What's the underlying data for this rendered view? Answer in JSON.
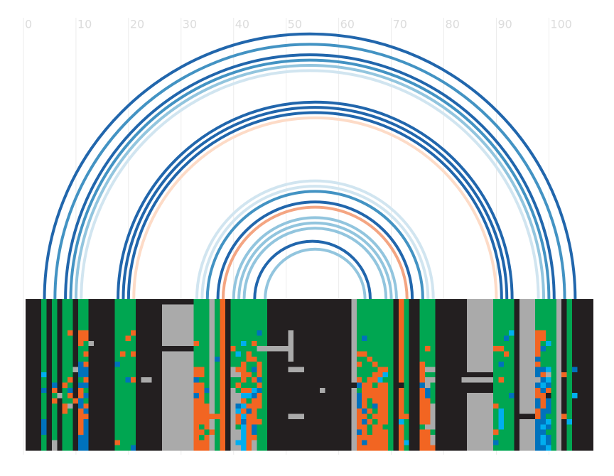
{
  "chart_data": {
    "type": "arc",
    "xlim": [
      -0.4,
      108.6
    ],
    "xticks": [
      0,
      10,
      20,
      30,
      40,
      50,
      60,
      70,
      80,
      90,
      100
    ],
    "grid": true,
    "arcs": [
      {
        "start": 4,
        "end": 105,
        "color": "#2166ac"
      },
      {
        "start": 6,
        "end": 103,
        "color": "#4393c3"
      },
      {
        "start": 8,
        "end": 101,
        "color": "#2166ac"
      },
      {
        "start": 9,
        "end": 100,
        "color": "#4393c3"
      },
      {
        "start": 10,
        "end": 99,
        "color": "#92c5de"
      },
      {
        "start": 11,
        "end": 98,
        "color": "#d1e5f0"
      },
      {
        "start": 18,
        "end": 93,
        "color": "#2166ac"
      },
      {
        "start": 19,
        "end": 92,
        "color": "#2166ac"
      },
      {
        "start": 20,
        "end": 91,
        "color": "#2166ac"
      },
      {
        "start": 21,
        "end": 90,
        "color": "#fddbc7"
      },
      {
        "start": 33,
        "end": 78,
        "color": "#d1e5f0"
      },
      {
        "start": 34,
        "end": 77,
        "color": "#d1e5f0"
      },
      {
        "start": 35,
        "end": 76,
        "color": "#4393c3"
      },
      {
        "start": 37,
        "end": 74,
        "color": "#2166ac"
      },
      {
        "start": 38,
        "end": 73,
        "color": "#f4a582"
      },
      {
        "start": 40,
        "end": 71,
        "color": "#92c5de"
      },
      {
        "start": 41,
        "end": 70,
        "color": "#92c5de"
      },
      {
        "start": 42,
        "end": 69,
        "color": "#92c5de"
      },
      {
        "start": 44,
        "end": 66,
        "color": "#2166ac"
      },
      {
        "start": 46,
        "end": 65,
        "color": "#92c5de"
      }
    ],
    "heatmap": {
      "palette": {
        "K": "#231f20",
        "G": "#00a651",
        "O": "#f26522",
        "S": "#aaaaaa",
        "B": "#0072bc",
        "C": "#00aeef"
      },
      "rows": [
        "KKKGKGKGGKGG KKKKK GGGG KKKKK KKKKKK GGGSGOK GGGGGGG KKKKKKKKKKKKKKKK SGGGGGGG KOGKKGGG KKKKKK SSSSS GGGG KSSS GGGG SKGKKKK",
        "KKKGKGKGGKGG KKKKK GGGG KKKKK SSSSSS GGGSGOK GGGGGGG KKKKKKKKKKKKKKKK SGGGGGGG KOGKKGGG KKKKKK SSSSS GGGG KSSS GGGG SKGKKKK",
        "KKKGKGKGGKGG KKKKK GGGG KKKKK SSSSSS GGGSGOK GGGGGGG KKKKKKKKKKKKKKKK SGGGGGGG KOGKKGGG KKKKKK SSSSS GGGG KSSS GGGG SKGKKKK",
        "KKKGKGKGGKGG KKKKK GGGG KKKKK SSSSSS GGGSGOK GGGGGGG KKKKKKKKKKKKKKKK SGGGGGGG KOGKKGGG KKKKKK SSSSS GGGG KSSS GGGG SKGKKKK",
        "KKKGKGKGGKGG KKKKK GGGG KKKKK SSSSSS GGGSGOK GGGGGGG KKKKKKKKKKKKKKKK SGGGGGGG KOGKKGGG KKKKKK SSSSS GGGG KSSS GGGG SKGKKKK",
        "KKKGKGKGGKGG KKKKK GGGG KKKKK SSSSSS GGGSGOK GGGGGGG KKKKKKKKKKKKKKKK SGGGGGGG KOGKKGGG KKKKKK SSSSS GGGG KSSS GGGG SKGKKKK",
        "KKKGKGKGOKOO KKKKK GGGO KKKKK SSSSSS GGGSGOK GGGGGBG KKKKSKKKKKKKKKKK SGGGGGGG KOGKKGGG KKKKKK SSSSS GGGC KSSS OOGG SKGKKKK",
        "KKKGKGKGGKOO KKKKK GGOG KKKKK SSSSSS GGGSGOK GGGGGGG KKKKSKKKKKKKKKKK SGBGGGGG KOGKKGGG KKKKKK SSSSS GGBG KSSS OOGG SKGKKKK",
        "KKKGKGKGGKOG SKKKK GGGG KKKKK SSSSSS OGGSGOK GGCGOGG KKKKSKKKKKKKKKKK SGGGGGGG KOGKKGGG KKKKKK SSSSS GGGG KSSS OGCG SKGKKKK",
        "KKKGKGKGGKGG KKKKK GGGG KKKKK KKKKKK GGGSGOK OGGGGSS SSSSSKKKKKKKKKKK SGGGGGGG KOGKKGOG KKKKKK SSSSS OOGG KSSS OBGG SKGKKKK",
        "KKKGKGKGGKGO KKKKK GOGO KKKKK SSSSSS GGGSGOK GCGOGGG KKKKSKKKKKKKKKKK SOOGGGGG KOGKKGGG KKKKKK SSSSS GGOG KSSS OGGG SKGKKKK",
        "KKKGKGKGGKGG KKKKK GGGG KKKKK SSSSSS GGGSBOK GGGOOGG KKKKSKKKKKKKKKKK SGGOGGGG KOGKKGGG KKKKKK SSSSS GGGG KSSS BGGG SKGKKKK",
        "KKKGKGKGGKBO KKKKK BGGG KKKKK SSSSSS GGGSGOK GGOGGOG KKKKKKKKKKKKKKKK SOGGOGGG KOGKKOGG KKKKKK SSSSS GBGG KSSS OGGG SKGKKKK",
        "KKKGKGKGGSBB KKKKK GGGG KKKKK SSSSSS OOGSGOK SOOGBOG KKKKSSSKKKKKKKKK SGGGGOOG KOGKKOSS KKKKKK SSSSS GGGG KSSS BBCG SKGBKKK",
        "KKKCKGKGGKBB KKKKK GGGG KKKKK SSSSSS OOGSGOK SSOOGOG KKKKKKKKKKKKKKKK SGGGOOCG KOGKKOGG KKKKKK KKKKK GGGG KSSS BOSG SOGKKKK",
        "KKKGKGKGOKGO KKKKK GGBO KSSKK SSSSSS BGGSGOK GGOGOBG KKKKKKKKKKKKKKKK SOGOOCGG KOGKKOSS KKKKKS SSSSS GOGG KSSS SBCG SKGKKKK",
        "KKKGKBKOGKBB KKKKK GGGG KKKKK SSSSSS OOGSGOK GOGGGOG KKKKKKKKKKKKKKKK KBOOGOOG KKGKKBSG KKKKKK KKKKK GGGG KSSS BCBG SKGKKKK",
        "KKKBKOKGBKOG KKKKK GGGG KKKKK SSSSSS OOBSGOK SGOOCBG KKKKKKKKKKSKKKKK SGOOOOOG KOGKKOBG KKKKKK KKKKK GGGG KSSS OBOG SKGKKKK",
        "KKKGKGSGOKOB KKKKK GGGG KKKKK SSSSSS BOGSGOK SSCCBOG KKKKKKKKKKKKKKKK SBOOOOOG KOGKKOBG KKKKKK SSSSS GGGB KSSS OOKG SKGCKKK",
        "KKKGKOKGGOBG KKKKK GGGG KKKKK SSSSSS OOGSGOK SSOGOOG KKKKKKKKKKKKKKKK SBOGOOOG KOGKKOOG KKKKKK SSSSS GGGG KSSS BOBG SKGKKKK",
        "KKKGKGKOSKBO KKKKK GGGG KKKKK SSSSSS OOOSGOK SBCOOOG KKKKKKKKKKKKKKKK SBOGBOOG KOGKKOOS KKKKKK SSSSS OGGG KSSS BOBG SKGKKKK",
        "KKKGKGKOGKOB KKKKK GGGG KKKKK SSSSSS OOOSGOK SCOBOGG KKKKKKKKKKKKKKKK SOBOGOOG KOGKKOOS KKKKKK SSSSS GCGG KSSS OBBG SKGKKKK",
        "KKKGKGKGGKOO KKKKK GGGG KKKKK SSSSSS OOOOOOK SOCOOGG KKKKSSSKKKKKKKKK SOOGOOOG KOOKKOOS KKKKKK SSSSS GCGG KKKK OBGG SOGKKKK",
        "KKKBKGKGGKOB KKKKK GGGG KKKKK SSSSSS OOOSGOK SOBOOOG KKKKKKKKKKKKKKKK SOBOGOOG KCGKKOOS KKKKKK SSSSS GCGG KSSS BBCG SKCKKKK",
        "KKKBKGKGGKOB KKKKK GGGG KKKKK SSSSSS OGOSGOK SGCOBGG KKKKKKKKKKKKKKKK SOOGOOGG KOGKKGSS KKKKKK SSSSS GCGG KSSS BCBG SKGKKKK",
        "KKKBKGKGGKOB KKKKK GGGG KKKKK SSSSSS OOGOGOK SSCOBGG KKKKKKKKKKKKKKKK SBOGOOOG KOGKKOOG KKKKKK SSSSS OGGG KSSS BBGG SKGKKKK",
        "KKKGKGKGGKBB KKKKK GGGG KKKKK SSSSSS OGOSGOK SSCOOGG KKKKKKKKKKKKKKKK SOOOOOOG KOGKKOOS KKKKKK SSSSS GGGG KSSS BCBG SKGKKKK",
        "KKKGKSKGGKBB KKKKK OGGG KKKKK SSSSSS OOOSGOK SCCOSGG KKKKKKKKKKKKKKKK SOBOOOOG KOCKKOOS KKKKKK SSSSS BGGG KSSS BCBG SKGKKKK",
        "KKKGKSKGGKBB KKKKK GGGB KKKKK SSSSSS OOOSGOK SSCOSGG KKKKKKKKKKKKKKKK SOOOOOOG KOGKKOOO KKKKKK SSSSS GGGG KSSS BBCG SKGKKKK"
      ]
    }
  }
}
